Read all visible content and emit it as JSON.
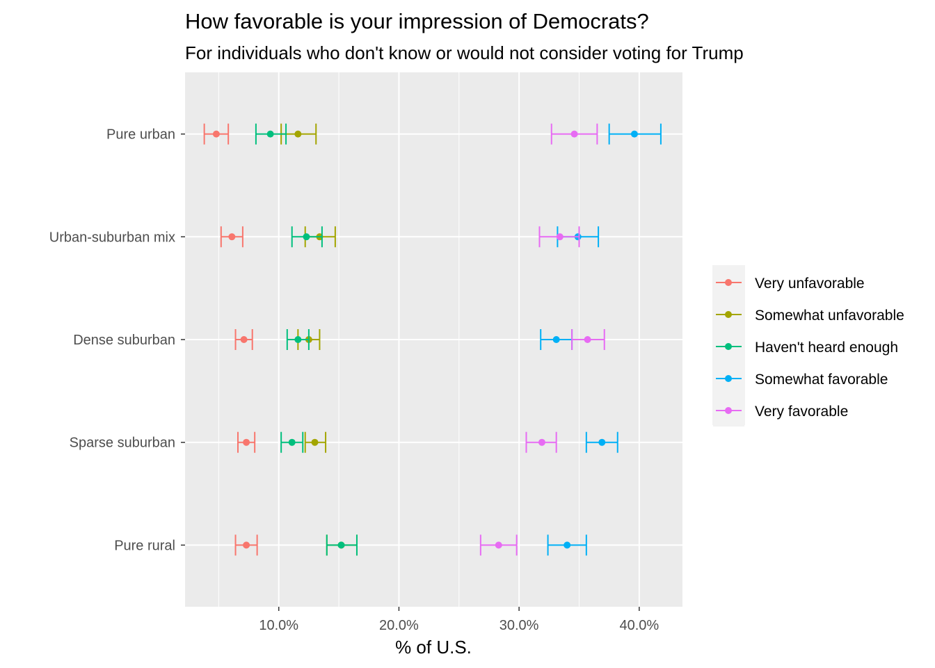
{
  "chart_data": {
    "type": "scatter",
    "title": "How favorable is your impression of Democrats?",
    "subtitle": "For individuals who don't know or would not consider voting for Trump",
    "xlabel": "% of U.S.",
    "ylabel": "",
    "xlim": [
      0.022,
      0.436
    ],
    "x_ticks": [
      0.1,
      0.2,
      0.3,
      0.4
    ],
    "x_tick_labels": [
      "10.0%",
      "20.0%",
      "30.0%",
      "40.0%"
    ],
    "x_minor_ticks": [
      0.05,
      0.15,
      0.25,
      0.35
    ],
    "categories": [
      "Pure urban",
      "Urban-suburban mix",
      "Dense suburban",
      "Sparse suburban",
      "Pure rural"
    ],
    "grid": true,
    "legend_position": "right",
    "error_bars": true,
    "series": [
      {
        "name": "Very unfavorable",
        "color": "#F8766D",
        "points": [
          {
            "category": "Pure urban",
            "estimate": 0.048,
            "low": 0.038,
            "high": 0.058
          },
          {
            "category": "Urban-suburban mix",
            "estimate": 0.061,
            "low": 0.052,
            "high": 0.07
          },
          {
            "category": "Dense suburban",
            "estimate": 0.071,
            "low": 0.064,
            "high": 0.078
          },
          {
            "category": "Sparse suburban",
            "estimate": 0.073,
            "low": 0.066,
            "high": 0.08
          },
          {
            "category": "Pure rural",
            "estimate": 0.073,
            "low": 0.064,
            "high": 0.082
          }
        ]
      },
      {
        "name": "Somewhat unfavorable",
        "color": "#A3A500",
        "points": [
          {
            "category": "Pure urban",
            "estimate": 0.116,
            "low": 0.102,
            "high": 0.131
          },
          {
            "category": "Urban-suburban mix",
            "estimate": 0.134,
            "low": 0.122,
            "high": 0.147
          },
          {
            "category": "Dense suburban",
            "estimate": 0.125,
            "low": 0.116,
            "high": 0.134
          },
          {
            "category": "Sparse suburban",
            "estimate": 0.13,
            "low": 0.122,
            "high": 0.139
          },
          {
            "category": "Pure rural",
            "estimate": 0.152,
            "low": 0.14,
            "high": 0.165
          }
        ]
      },
      {
        "name": "Haven't heard enough",
        "color": "#00BF7D",
        "points": [
          {
            "category": "Pure urban",
            "estimate": 0.093,
            "low": 0.081,
            "high": 0.106
          },
          {
            "category": "Urban-suburban mix",
            "estimate": 0.123,
            "low": 0.111,
            "high": 0.136
          },
          {
            "category": "Dense suburban",
            "estimate": 0.116,
            "low": 0.107,
            "high": 0.125
          },
          {
            "category": "Sparse suburban",
            "estimate": 0.111,
            "low": 0.102,
            "high": 0.12
          },
          {
            "category": "Pure rural",
            "estimate": 0.152,
            "low": 0.14,
            "high": 0.165
          }
        ]
      },
      {
        "name": "Somewhat favorable",
        "color": "#00B0F6",
        "points": [
          {
            "category": "Pure urban",
            "estimate": 0.396,
            "low": 0.375,
            "high": 0.418
          },
          {
            "category": "Urban-suburban mix",
            "estimate": 0.349,
            "low": 0.332,
            "high": 0.366
          },
          {
            "category": "Dense suburban",
            "estimate": 0.331,
            "low": 0.318,
            "high": 0.344
          },
          {
            "category": "Sparse suburban",
            "estimate": 0.369,
            "low": 0.356,
            "high": 0.382
          },
          {
            "category": "Pure rural",
            "estimate": 0.34,
            "low": 0.324,
            "high": 0.356
          }
        ]
      },
      {
        "name": "Very favorable",
        "color": "#E76BF3",
        "points": [
          {
            "category": "Pure urban",
            "estimate": 0.346,
            "low": 0.327,
            "high": 0.365
          },
          {
            "category": "Urban-suburban mix",
            "estimate": 0.334,
            "low": 0.317,
            "high": 0.35
          },
          {
            "category": "Dense suburban",
            "estimate": 0.357,
            "low": 0.344,
            "high": 0.371
          },
          {
            "category": "Sparse suburban",
            "estimate": 0.319,
            "low": 0.306,
            "high": 0.331
          },
          {
            "category": "Pure rural",
            "estimate": 0.283,
            "low": 0.268,
            "high": 0.298
          }
        ]
      }
    ]
  }
}
